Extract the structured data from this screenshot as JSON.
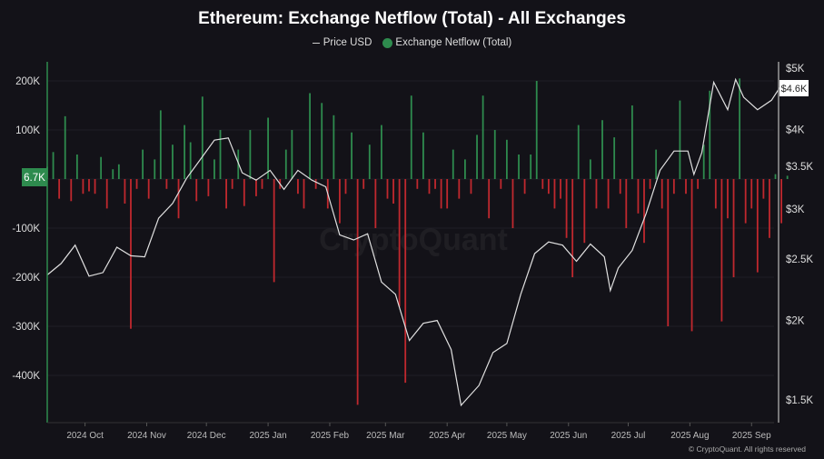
{
  "title": "Ethereum: Exchange Netflow (Total) - All Exchanges",
  "legend": {
    "price": "Price USD",
    "netflow": "Exchange Netflow (Total)"
  },
  "footer": "© CryptoQuant. All rights reserved",
  "watermark": "CryptoQuant",
  "colors": {
    "background": "#131218",
    "inflow": "#2e8b4e",
    "outflow": "#c0282e",
    "price": "#e0e0e0"
  },
  "chart_data": {
    "type": "bar+line",
    "title": "Ethereum: Exchange Netflow (Total) - All Exchanges",
    "left_axis": {
      "ticks": [
        "200K",
        "100K",
        "0",
        "-100K",
        "-200K",
        "-300K",
        "-400K"
      ],
      "tick_values": [
        200,
        100,
        0,
        -100,
        -200,
        -300,
        -400
      ],
      "unit": "K ETH",
      "range": [
        -500,
        225
      ]
    },
    "right_axis": {
      "scale": "log",
      "ticks": [
        "$5K",
        "$4K",
        "$3.5K",
        "$3K",
        "$2.5K",
        "$2K",
        "$1.5K"
      ],
      "tick_values": [
        5000,
        4000,
        3500,
        3000,
        2500,
        2000,
        1500
      ]
    },
    "x_ticks": [
      {
        "label": "2024 Oct",
        "date": "2024-10-01"
      },
      {
        "label": "2024 Nov",
        "date": "2024-11-01"
      },
      {
        "label": "2024 Dec",
        "date": "2024-12-01"
      },
      {
        "label": "2025 Jan",
        "date": "2025-01-01"
      },
      {
        "label": "2025 Feb",
        "date": "2025-02-01"
      },
      {
        "label": "2025 Mar",
        "date": "2025-03-01"
      },
      {
        "label": "2025 Apr",
        "date": "2025-04-01"
      },
      {
        "label": "2025 May",
        "date": "2025-05-01"
      },
      {
        "label": "2025 Jun",
        "date": "2025-06-01"
      },
      {
        "label": "2025 Jul",
        "date": "2025-07-01"
      },
      {
        "label": "2025 Aug",
        "date": "2025-08-01"
      },
      {
        "label": "2025 Sep",
        "date": "2025-09-01"
      }
    ],
    "last_netflow_label": "6.7K",
    "last_price_label": "$4.6K",
    "netflow_dates": [
      "2024-09-12",
      "2024-09-15",
      "2024-09-18",
      "2024-09-21",
      "2024-09-24",
      "2024-09-27",
      "2024-09-30",
      "2024-10-03",
      "2024-10-06",
      "2024-10-09",
      "2024-10-12",
      "2024-10-15",
      "2024-10-18",
      "2024-10-21",
      "2024-10-24",
      "2024-10-27",
      "2024-10-30",
      "2024-11-02",
      "2024-11-05",
      "2024-11-08",
      "2024-11-11",
      "2024-11-14",
      "2024-11-17",
      "2024-11-20",
      "2024-11-23",
      "2024-11-26",
      "2024-11-29",
      "2024-12-02",
      "2024-12-05",
      "2024-12-08",
      "2024-12-11",
      "2024-12-14",
      "2024-12-17",
      "2024-12-20",
      "2024-12-23",
      "2024-12-26",
      "2024-12-29",
      "2025-01-01",
      "2025-01-04",
      "2025-01-07",
      "2025-01-10",
      "2025-01-13",
      "2025-01-16",
      "2025-01-19",
      "2025-01-22",
      "2025-01-25",
      "2025-01-28",
      "2025-01-31",
      "2025-02-03",
      "2025-02-06",
      "2025-02-09",
      "2025-02-12",
      "2025-02-15",
      "2025-02-18",
      "2025-02-21",
      "2025-02-24",
      "2025-02-27",
      "2025-03-02",
      "2025-03-05",
      "2025-03-08",
      "2025-03-11",
      "2025-03-14",
      "2025-03-17",
      "2025-03-20",
      "2025-03-23",
      "2025-03-26",
      "2025-03-29",
      "2025-04-01",
      "2025-04-04",
      "2025-04-07",
      "2025-04-10",
      "2025-04-13",
      "2025-04-16",
      "2025-04-19",
      "2025-04-22",
      "2025-04-25",
      "2025-04-28",
      "2025-05-01",
      "2025-05-04",
      "2025-05-07",
      "2025-05-10",
      "2025-05-13",
      "2025-05-16",
      "2025-05-19",
      "2025-05-22",
      "2025-05-25",
      "2025-05-28",
      "2025-05-31",
      "2025-06-03",
      "2025-06-06",
      "2025-06-09",
      "2025-06-12",
      "2025-06-15",
      "2025-06-18",
      "2025-06-21",
      "2025-06-24",
      "2025-06-27",
      "2025-06-30",
      "2025-07-03",
      "2025-07-06",
      "2025-07-09",
      "2025-07-12",
      "2025-07-15",
      "2025-07-18",
      "2025-07-21",
      "2025-07-24",
      "2025-07-27",
      "2025-07-30",
      "2025-08-02",
      "2025-08-05",
      "2025-08-08",
      "2025-08-11",
      "2025-08-14",
      "2025-08-17",
      "2025-08-20",
      "2025-08-23",
      "2025-08-26",
      "2025-08-29",
      "2025-09-01",
      "2025-09-04",
      "2025-09-07",
      "2025-09-10",
      "2025-09-13",
      "2025-09-16",
      "2025-09-19"
    ],
    "netflow_values_k": [
      25,
      55,
      -40,
      128,
      -45,
      50,
      -30,
      -25,
      -30,
      45,
      -60,
      20,
      30,
      -50,
      -305,
      -20,
      60,
      -40,
      40,
      140,
      -20,
      70,
      -80,
      110,
      75,
      -45,
      168,
      -35,
      40,
      100,
      -60,
      -20,
      60,
      -55,
      100,
      -35,
      -20,
      125,
      -210,
      -20,
      60,
      100,
      -30,
      -60,
      175,
      -20,
      155,
      -60,
      130,
      -90,
      -30,
      95,
      -460,
      -20,
      70,
      -100,
      110,
      -40,
      -50,
      -260,
      -415,
      170,
      -20,
      95,
      -30,
      -20,
      -60,
      -60,
      60,
      -40,
      40,
      -30,
      90,
      170,
      -80,
      100,
      -20,
      80,
      -100,
      50,
      -30,
      50,
      200,
      -20,
      -30,
      -60,
      -40,
      -120,
      -200,
      110,
      -130,
      40,
      -60,
      120,
      -60,
      85,
      -30,
      -100,
      150,
      -70,
      -130,
      -20,
      60,
      -60,
      -300,
      -30,
      160,
      -30,
      -310,
      -20,
      70,
      180,
      -60,
      -290,
      -80,
      -200,
      205,
      -90,
      -60,
      -190,
      -40,
      -120,
      10,
      -90,
      6.7
    ],
    "price": {
      "dates": [
        "2024-09-12",
        "2024-09-19",
        "2024-09-26",
        "2024-10-03",
        "2024-10-10",
        "2024-10-17",
        "2024-10-24",
        "2024-10-31",
        "2024-11-07",
        "2024-11-14",
        "2024-11-21",
        "2024-11-28",
        "2024-12-05",
        "2024-12-12",
        "2024-12-19",
        "2024-12-26",
        "2025-01-02",
        "2025-01-09",
        "2025-01-16",
        "2025-01-23",
        "2025-01-30",
        "2025-02-06",
        "2025-02-13",
        "2025-02-20",
        "2025-02-27",
        "2025-03-06",
        "2025-03-13",
        "2025-03-20",
        "2025-03-27",
        "2025-04-03",
        "2025-04-08",
        "2025-04-17",
        "2025-04-24",
        "2025-05-01",
        "2025-05-08",
        "2025-05-15",
        "2025-05-22",
        "2025-05-29",
        "2025-06-05",
        "2025-06-12",
        "2025-06-19",
        "2025-06-22",
        "2025-06-26",
        "2025-07-03",
        "2025-07-10",
        "2025-07-17",
        "2025-07-24",
        "2025-07-31",
        "2025-08-03",
        "2025-08-07",
        "2025-08-13",
        "2025-08-20",
        "2025-08-24",
        "2025-08-28",
        "2025-09-04",
        "2025-09-11",
        "2025-09-15",
        "2025-09-19"
      ],
      "values": [
        2360,
        2460,
        2630,
        2350,
        2380,
        2610,
        2530,
        2520,
        2900,
        3060,
        3350,
        3590,
        3850,
        3880,
        3420,
        3330,
        3450,
        3220,
        3450,
        3330,
        3250,
        2730,
        2680,
        2740,
        2300,
        2200,
        1860,
        1980,
        2000,
        1800,
        1470,
        1580,
        1780,
        1840,
        2200,
        2550,
        2660,
        2630,
        2480,
        2640,
        2520,
        2230,
        2420,
        2580,
        2950,
        3450,
        3700,
        3700,
        3400,
        3680,
        4750,
        4300,
        4800,
        4500,
        4300,
        4450,
        4650,
        4550
      ]
    }
  }
}
